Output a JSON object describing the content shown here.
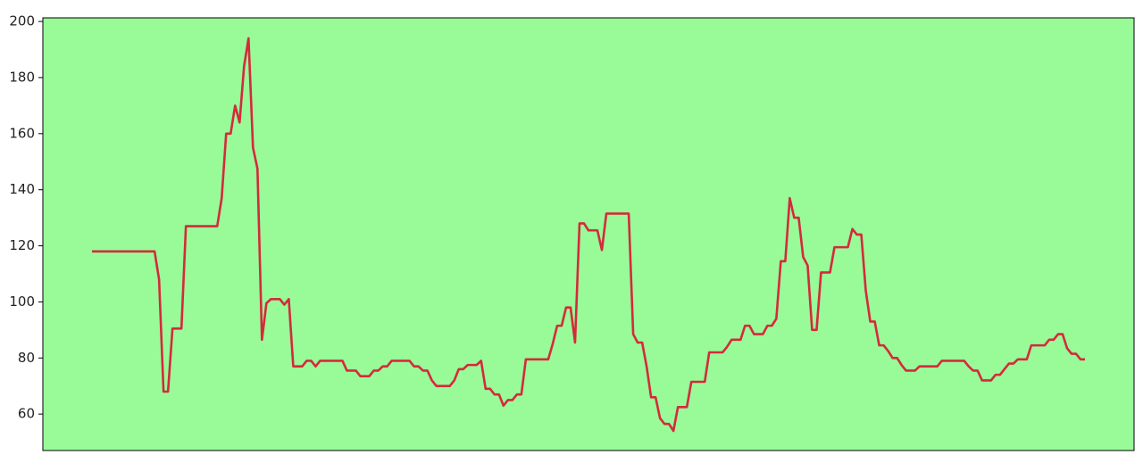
{
  "chart_data": {
    "type": "line",
    "background": "#98fb98",
    "color": "#d42a3c",
    "ylim": [
      47,
      201.3
    ],
    "yticks": [
      60,
      80,
      100,
      120,
      140,
      160,
      180,
      200
    ],
    "values": [
      118,
      118,
      118,
      118,
      118,
      118,
      118,
      118,
      118,
      118,
      118,
      118,
      118,
      118,
      118,
      108,
      68,
      68,
      90.5,
      90.5,
      90.5,
      127,
      127,
      127,
      127,
      127,
      127,
      127,
      127,
      137,
      160,
      160,
      170,
      164,
      184,
      194,
      155,
      147.5,
      86.5,
      99.5,
      101,
      101,
      101,
      99,
      101,
      77,
      77,
      77,
      79,
      79,
      77,
      79,
      79,
      79,
      79,
      79,
      79,
      75.5,
      75.5,
      75.5,
      73.5,
      73.5,
      73.5,
      75.5,
      75.5,
      77,
      77,
      79,
      79,
      79,
      79,
      79,
      77,
      77,
      75.5,
      75.5,
      72,
      70,
      70,
      70,
      70,
      72,
      76,
      76,
      77.5,
      77.5,
      77.5,
      79,
      69,
      69,
      67,
      67,
      63,
      65,
      65,
      67,
      67,
      79.5,
      79.5,
      79.5,
      79.5,
      79.5,
      79.5,
      85,
      91.5,
      91.5,
      98,
      98,
      85.5,
      128,
      128,
      125.5,
      125.5,
      125.5,
      118.5,
      131.5,
      131.5,
      131.5,
      131.5,
      131.5,
      131.5,
      88.5,
      85.5,
      85.5,
      77,
      66,
      66,
      58.5,
      56.5,
      56.5,
      54,
      62.5,
      62.5,
      62.5,
      71.5,
      71.5,
      71.5,
      71.5,
      82,
      82,
      82,
      82,
      84,
      86.5,
      86.5,
      86.5,
      91.5,
      91.5,
      88.5,
      88.5,
      88.5,
      91.5,
      91.5,
      94,
      114.5,
      114.5,
      137,
      130,
      130,
      116,
      113,
      90,
      90,
      110.5,
      110.5,
      110.5,
      119.5,
      119.5,
      119.5,
      119.5,
      126,
      124,
      124,
      104,
      93,
      93,
      84.5,
      84.5,
      82.5,
      80,
      80,
      77.5,
      75.5,
      75.5,
      75.5,
      77,
      77,
      77,
      77,
      77,
      79,
      79,
      79,
      79,
      79,
      79,
      77,
      75.5,
      75.5,
      72,
      72,
      72,
      74,
      74,
      76,
      78,
      78,
      79.5,
      79.5,
      79.5,
      84.5,
      84.5,
      84.5,
      84.5,
      86.5,
      86.5,
      88.5,
      88.5,
      83.5,
      81.5,
      81.5,
      79.5,
      79.5
    ]
  }
}
